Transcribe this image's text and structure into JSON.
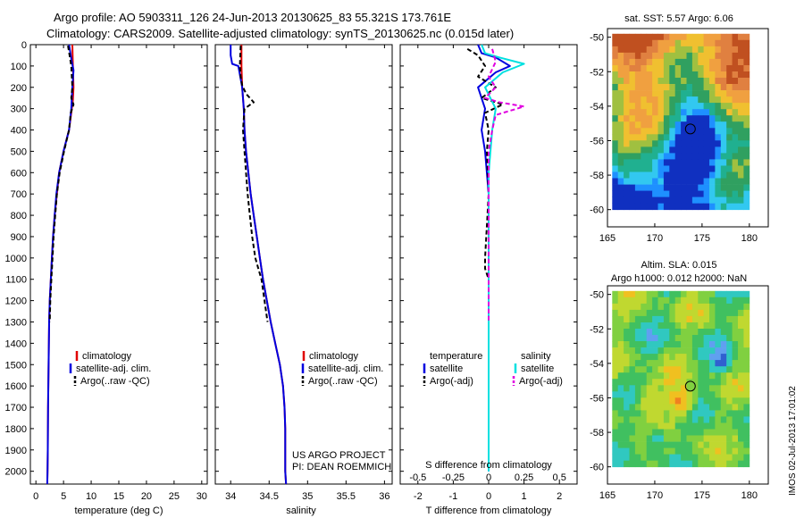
{
  "figure": {
    "title_line1": "Argo profile: AO 5903311_126 24-Jun-2013 20130625_83 55.321S 173.761E",
    "title_line2": "Climatology: CARS2009. Satellite-adjusted climatology: synTS_20130625.nc (0.015d later)",
    "project_line1": "US ARGO PROJECT",
    "project_line2": "PI: DEAN ROEMMICH",
    "imos_stamp": "IMOS 02-Jul-2013 17:01:02"
  },
  "chart_data": [
    {
      "id": "temperature-profile",
      "type": "line",
      "xlabel": "temperature (deg C)",
      "ylabel": "",
      "xlim": [
        -1,
        31
      ],
      "ylim": [
        2060,
        0
      ],
      "x_ticks": [
        0,
        5,
        10,
        15,
        20,
        25,
        30
      ],
      "x_tick_labels": [
        "0",
        "5",
        "10",
        "15",
        "20",
        "25",
        "30"
      ],
      "y_ticks": [
        0,
        100,
        200,
        300,
        400,
        500,
        600,
        700,
        800,
        900,
        1000,
        1100,
        1200,
        1300,
        1400,
        1500,
        1600,
        1700,
        1800,
        1900,
        2000
      ],
      "legend": {
        "position": "lower-center",
        "entries": [
          "climatology",
          "satellite-adj. clim.",
          "Argo(..raw -QC)"
        ]
      },
      "series": [
        {
          "name": "climatology",
          "color": "#e00000",
          "dash": "solid",
          "x": [
            6.6,
            6.7,
            6.8,
            6.7,
            6.5,
            6.0,
            5.0,
            4.2,
            3.8,
            3.4,
            3.1,
            2.9,
            2.7,
            2.5,
            2.4,
            2.3,
            2.2,
            2.15,
            2.1,
            2.05
          ],
          "y": [
            0,
            100,
            200,
            260,
            300,
            400,
            500,
            600,
            700,
            800,
            900,
            1000,
            1100,
            1200,
            1300,
            1500,
            1700,
            1900,
            2000,
            2060
          ]
        },
        {
          "name": "satellite-adj. clim.",
          "color": "#0000e0",
          "dash": "solid",
          "x": [
            6.0,
            6.3,
            6.5,
            6.8,
            6.6,
            6.4,
            6.0,
            5.0,
            4.2,
            3.7,
            3.4,
            3.1,
            2.9,
            2.7,
            2.5,
            2.4,
            2.3,
            2.2,
            2.15,
            2.1,
            2.05
          ],
          "y": [
            0,
            50,
            80,
            120,
            200,
            300,
            400,
            500,
            600,
            700,
            800,
            900,
            1000,
            1100,
            1200,
            1300,
            1500,
            1700,
            1900,
            2000,
            2060
          ]
        },
        {
          "name": "Argo(..raw -QC)",
          "color": "#000000",
          "dash": "dashed",
          "x": [
            5.8,
            6.1,
            6.4,
            6.6,
            6.4,
            6.8,
            6.3,
            6.0,
            5.1,
            4.3,
            3.8,
            3.5,
            3.2,
            3.0,
            2.8,
            2.6,
            2.5
          ],
          "y": [
            5,
            50,
            100,
            200,
            250,
            280,
            320,
            400,
            500,
            600,
            700,
            800,
            900,
            1000,
            1100,
            1200,
            1300
          ]
        }
      ]
    },
    {
      "id": "salinity-profile",
      "type": "line",
      "xlabel": "salinity",
      "ylabel": "",
      "xlim": [
        33.8,
        36.1
      ],
      "ylim": [
        2060,
        0
      ],
      "x_ticks": [
        34,
        34.5,
        35,
        35.5,
        36
      ],
      "x_tick_labels": [
        "34",
        "34.5",
        "35",
        "35.5",
        "36"
      ],
      "legend": {
        "position": "lower-center",
        "entries": [
          "climatology",
          "satellite-adj. clim.",
          "Argo(..raw -QC)"
        ]
      },
      "series": [
        {
          "name": "climatology",
          "color": "#e00000",
          "dash": "solid",
          "x": [
            34.14,
            34.14,
            34.15,
            34.17,
            34.18,
            34.2,
            34.23,
            34.26,
            34.3,
            34.34,
            34.38,
            34.42,
            34.47,
            34.52,
            34.58,
            34.64,
            34.68,
            34.7,
            34.71,
            34.71,
            34.72
          ],
          "y": [
            0,
            100,
            200,
            300,
            400,
            500,
            600,
            700,
            800,
            900,
            1000,
            1100,
            1200,
            1300,
            1400,
            1500,
            1600,
            1700,
            1800,
            2000,
            2060
          ]
        },
        {
          "name": "satellite-adj. clim.",
          "color": "#0000e0",
          "dash": "solid",
          "x": [
            34.0,
            34.0,
            34.02,
            34.1,
            34.15,
            34.17,
            34.18,
            34.2,
            34.23,
            34.26,
            34.3,
            34.34,
            34.38,
            34.42,
            34.47,
            34.52,
            34.58,
            34.64,
            34.68,
            34.7,
            34.71,
            34.71,
            34.72
          ],
          "y": [
            0,
            50,
            90,
            100,
            200,
            300,
            400,
            500,
            600,
            700,
            800,
            900,
            1000,
            1100,
            1200,
            1300,
            1400,
            1500,
            1600,
            1700,
            1800,
            2000,
            2060
          ]
        },
        {
          "name": "Argo(..raw -QC)",
          "color": "#000000",
          "dash": "dashed",
          "x": [
            34.13,
            34.12,
            34.13,
            34.15,
            34.2,
            34.3,
            34.18,
            34.16,
            34.18,
            34.2,
            34.22,
            34.25,
            34.28,
            34.32,
            34.36,
            34.4,
            34.44,
            34.48
          ],
          "y": [
            5,
            100,
            150,
            190,
            230,
            270,
            300,
            400,
            500,
            600,
            700,
            800,
            900,
            1000,
            1050,
            1100,
            1200,
            1300
          ]
        }
      ]
    },
    {
      "id": "difference-profile",
      "type": "line",
      "xlabel": "T difference from climatology",
      "top_xlabel": "S difference from climatology",
      "xlim": [
        -2.5,
        2.5
      ],
      "ylim": [
        2060,
        0
      ],
      "x_ticks": [
        -2,
        -1,
        0,
        1,
        2
      ],
      "x_tick_labels": [
        "-2",
        "-1",
        "0",
        "1",
        "2"
      ],
      "s_ticks": [
        -0.5,
        -0.25,
        0,
        0.25,
        0.5
      ],
      "s_tick_labels": [
        "-0.5",
        "-0.25",
        "0",
        "0.25",
        "0.5"
      ],
      "legend": {
        "position": "lower-center",
        "temperature_header": "temperature",
        "salinity_header": "salinity",
        "entries": [
          "satellite",
          "Argo(-adj)",
          "satellite",
          "Argo(-adj)"
        ]
      },
      "series": [
        {
          "name": "satellite",
          "group": "temperature",
          "color": "#0000e0",
          "dash": "solid",
          "x": [
            -0.3,
            -0.2,
            0.2,
            0.6,
            0.2,
            -0.3,
            -0.1,
            -0.2,
            -0.1,
            -0.05,
            0,
            0,
            0,
            0,
            0
          ],
          "y": [
            0,
            40,
            60,
            100,
            130,
            200,
            300,
            400,
            500,
            600,
            700,
            800,
            1000,
            1500,
            2000
          ]
        },
        {
          "name": "Argo(-adj)",
          "group": "temperature",
          "color": "#000000",
          "dash": "dashed",
          "x": [
            -0.6,
            -0.3,
            -0.1,
            -0.3,
            0.2,
            -0.2,
            0.4,
            -0.1,
            0,
            -0.05,
            0,
            -0.1,
            -0.1,
            0,
            0
          ],
          "y": [
            20,
            50,
            100,
            150,
            200,
            250,
            280,
            320,
            400,
            500,
            700,
            1000,
            1050,
            1100,
            1300
          ]
        },
        {
          "name": "satellite",
          "group": "salinity",
          "color": "#00e0e0",
          "dash": "solid",
          "x": [
            -0.2,
            -0.1,
            0.3,
            1.0,
            0.4,
            -0.1,
            0.2,
            0.1,
            0.05,
            0,
            0,
            0,
            0,
            0
          ],
          "y": [
            0,
            40,
            60,
            90,
            130,
            200,
            300,
            400,
            500,
            600,
            800,
            1000,
            1500,
            2000
          ]
        },
        {
          "name": "Argo(-adj)",
          "group": "salinity",
          "color": "#e000e0",
          "dash": "dashed",
          "x": [
            0.1,
            0.2,
            0,
            0.2,
            -0.1,
            0.3,
            1.0,
            0.2,
            0.1,
            0,
            0,
            0,
            0
          ],
          "y": [
            20,
            80,
            150,
            200,
            250,
            270,
            290,
            330,
            400,
            500,
            800,
            1000,
            1300
          ]
        }
      ]
    },
    {
      "id": "sst-map",
      "type": "heatmap",
      "title": "sat. SST: 5.57  Argo: 6.06",
      "xlim": [
        165,
        182
      ],
      "ylim": [
        -61,
        -49.5
      ],
      "x_ticks": [
        165,
        170,
        175,
        180
      ],
      "x_tick_labels": [
        "165",
        "170",
        "175",
        "180"
      ],
      "y_ticks": [
        -50,
        -52,
        -54,
        -56,
        -58,
        -60
      ],
      "y_tick_labels": [
        "-50",
        "-52",
        "-54",
        "-56",
        "-58",
        "-60"
      ],
      "data_extent": {
        "lon": [
          165.5,
          180
        ],
        "lat": [
          -60,
          -49.8
        ]
      },
      "palette": [
        "#1030c0",
        "#1e90ff",
        "#32c8f0",
        "#20b090",
        "#30a060",
        "#a0c040",
        "#f0c030",
        "#f0a040",
        "#e08040",
        "#c05020"
      ],
      "marker": {
        "lon": 173.761,
        "lat": -55.321,
        "shape": "circle"
      }
    },
    {
      "id": "sla-map",
      "type": "heatmap",
      "title": "Altim. SLA: 0.015",
      "subtitle": "Argo h1000: 0.012 h2000: NaN",
      "xlim": [
        165,
        182
      ],
      "ylim": [
        -61,
        -49.5
      ],
      "x_ticks": [
        165,
        170,
        175,
        180
      ],
      "x_tick_labels": [
        "165",
        "170",
        "175",
        "180"
      ],
      "y_ticks": [
        -50,
        -52,
        -54,
        -56,
        -58,
        -60
      ],
      "y_tick_labels": [
        "-50",
        "-52",
        "-54",
        "-56",
        "-58",
        "-60"
      ],
      "data_extent": {
        "lon": [
          165.5,
          180
        ],
        "lat": [
          -60,
          -49.8
        ]
      },
      "palette": [
        "#3060d0",
        "#60a0f0",
        "#30c8c0",
        "#40c060",
        "#80d040",
        "#c0d830",
        "#f0c020",
        "#f08020",
        "#e04020"
      ],
      "marker": {
        "lon": 173.761,
        "lat": -55.321,
        "shape": "circle"
      }
    }
  ],
  "depth_tick_labels": [
    "0",
    "100",
    "200",
    "300",
    "400",
    "500",
    "600",
    "700",
    "800",
    "900",
    "1000",
    "1100",
    "1200",
    "1300",
    "1400",
    "1500",
    "1600",
    "1700",
    "1800",
    "1900",
    "2000"
  ]
}
